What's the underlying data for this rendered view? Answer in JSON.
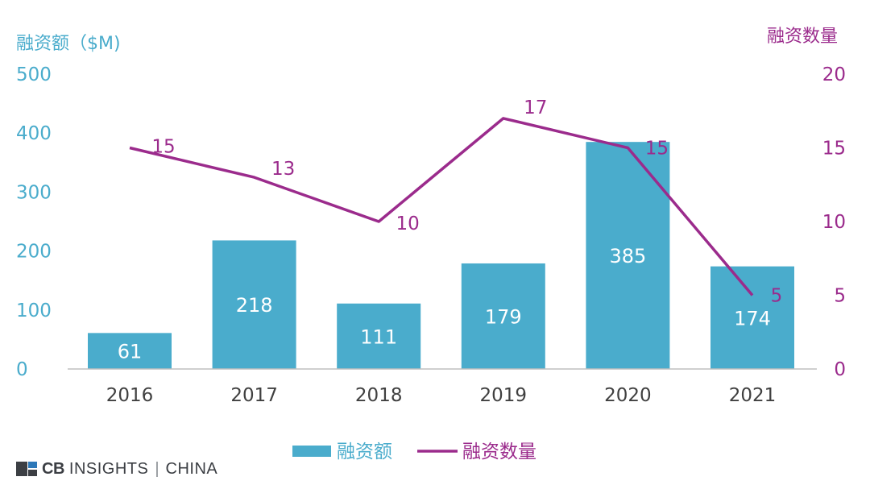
{
  "chart_data": {
    "type": "bar+line",
    "categories": [
      "2016",
      "2017",
      "2018",
      "2019",
      "2020",
      "2021"
    ],
    "series": [
      {
        "name": "融资额",
        "type": "bar",
        "axis": "left",
        "values": [
          61,
          218,
          111,
          179,
          385,
          174
        ],
        "color": "#4aaccc"
      },
      {
        "name": "融资数量",
        "type": "line",
        "axis": "right",
        "values": [
          15,
          13,
          10,
          17,
          15,
          5
        ],
        "color": "#9b2b8c"
      }
    ],
    "y_left": {
      "label": "融资额（$M)",
      "ticks": [
        "0",
        "100",
        "200",
        "300",
        "400",
        "500"
      ],
      "range": [
        0,
        500
      ],
      "color": "#4aaccc"
    },
    "y_right": {
      "label": "融资数量",
      "ticks": [
        "0",
        "5",
        "10",
        "15",
        "20"
      ],
      "range": [
        0,
        20
      ],
      "color": "#9b2b8c"
    },
    "bar_labels": [
      "61",
      "218",
      "111",
      "179",
      "385",
      "174"
    ],
    "line_labels": [
      "15",
      "13",
      "10",
      "17",
      "15",
      "5"
    ],
    "legend": {
      "placement": "bottom",
      "items": [
        "融资额",
        "融资数量"
      ]
    },
    "grid": false
  },
  "brand": {
    "cb": "CB",
    "insights": "INSIGHTS",
    "sep": "|",
    "region": "CHINA"
  }
}
